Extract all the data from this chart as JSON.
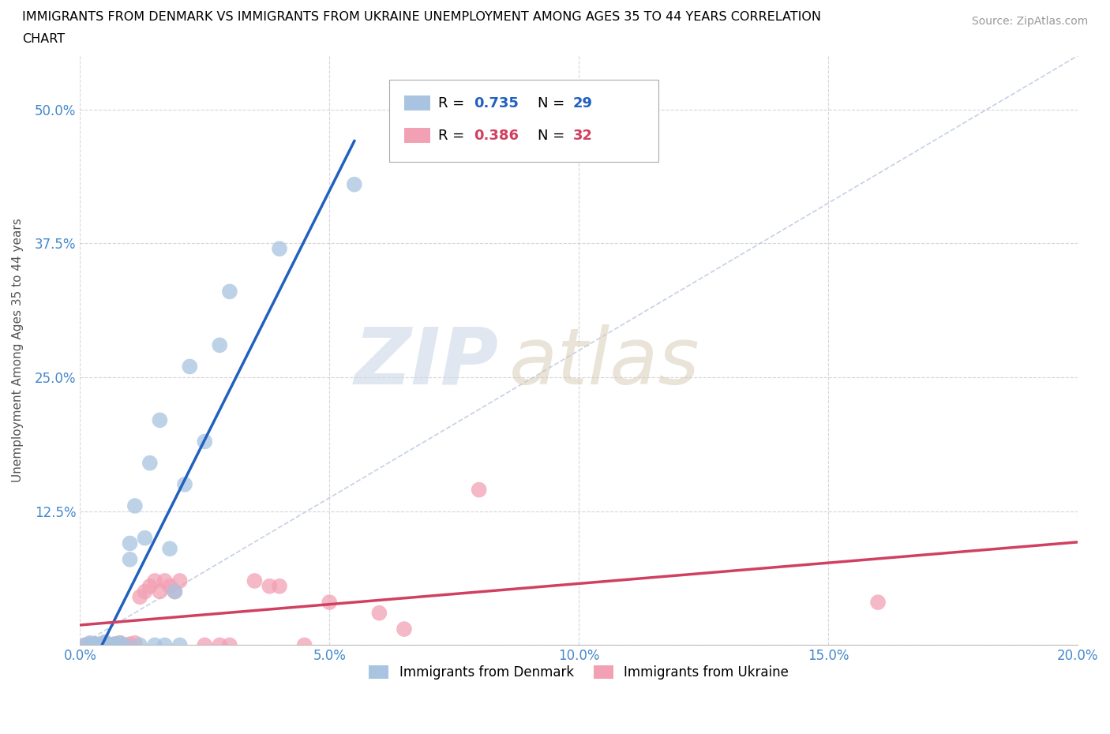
{
  "title_line1": "IMMIGRANTS FROM DENMARK VS IMMIGRANTS FROM UKRAINE UNEMPLOYMENT AMONG AGES 35 TO 44 YEARS CORRELATION",
  "title_line2": "CHART",
  "source": "Source: ZipAtlas.com",
  "ylabel": "Unemployment Among Ages 35 to 44 years",
  "xlim": [
    0.0,
    0.2
  ],
  "ylim": [
    0.0,
    0.55
  ],
  "xticks": [
    0.0,
    0.05,
    0.1,
    0.15,
    0.2
  ],
  "xticklabels": [
    "0.0%",
    "5.0%",
    "10.0%",
    "15.0%",
    "20.0%"
  ],
  "yticks": [
    0.0,
    0.125,
    0.25,
    0.375,
    0.5
  ],
  "yticklabels": [
    "",
    "12.5%",
    "25.0%",
    "37.5%",
    "50.0%"
  ],
  "denmark_R": 0.735,
  "denmark_N": 29,
  "ukraine_R": 0.386,
  "ukraine_N": 32,
  "denmark_color": "#a8c4e0",
  "ukraine_color": "#f2a0b4",
  "denmark_line_color": "#2060c0",
  "ukraine_line_color": "#d04060",
  "diagonal_color": "#c0cce0",
  "denmark_x": [
    0.001,
    0.002,
    0.003,
    0.003,
    0.004,
    0.005,
    0.006,
    0.007,
    0.008,
    0.009,
    0.01,
    0.01,
    0.011,
    0.012,
    0.013,
    0.014,
    0.015,
    0.016,
    0.017,
    0.018,
    0.019,
    0.02,
    0.021,
    0.022,
    0.025,
    0.028,
    0.03,
    0.04,
    0.055
  ],
  "denmark_y": [
    0.0,
    0.002,
    0.001,
    0.0,
    0.001,
    0.003,
    0.0,
    0.001,
    0.002,
    0.0,
    0.08,
    0.095,
    0.13,
    0.0,
    0.1,
    0.17,
    0.0,
    0.21,
    0.0,
    0.09,
    0.05,
    0.0,
    0.15,
    0.26,
    0.19,
    0.28,
    0.33,
    0.37,
    0.43
  ],
  "ukraine_x": [
    0.001,
    0.002,
    0.003,
    0.004,
    0.005,
    0.006,
    0.007,
    0.008,
    0.009,
    0.01,
    0.011,
    0.012,
    0.013,
    0.014,
    0.015,
    0.016,
    0.017,
    0.018,
    0.019,
    0.02,
    0.025,
    0.028,
    0.03,
    0.035,
    0.038,
    0.04,
    0.045,
    0.05,
    0.06,
    0.065,
    0.08,
    0.16
  ],
  "ukraine_y": [
    0.0,
    0.001,
    0.001,
    0.0,
    0.002,
    0.0,
    0.001,
    0.002,
    0.0,
    0.001,
    0.002,
    0.045,
    0.05,
    0.055,
    0.06,
    0.05,
    0.06,
    0.055,
    0.05,
    0.06,
    0.0,
    0.0,
    0.0,
    0.06,
    0.055,
    0.055,
    0.0,
    0.04,
    0.03,
    0.015,
    0.145,
    0.04
  ]
}
